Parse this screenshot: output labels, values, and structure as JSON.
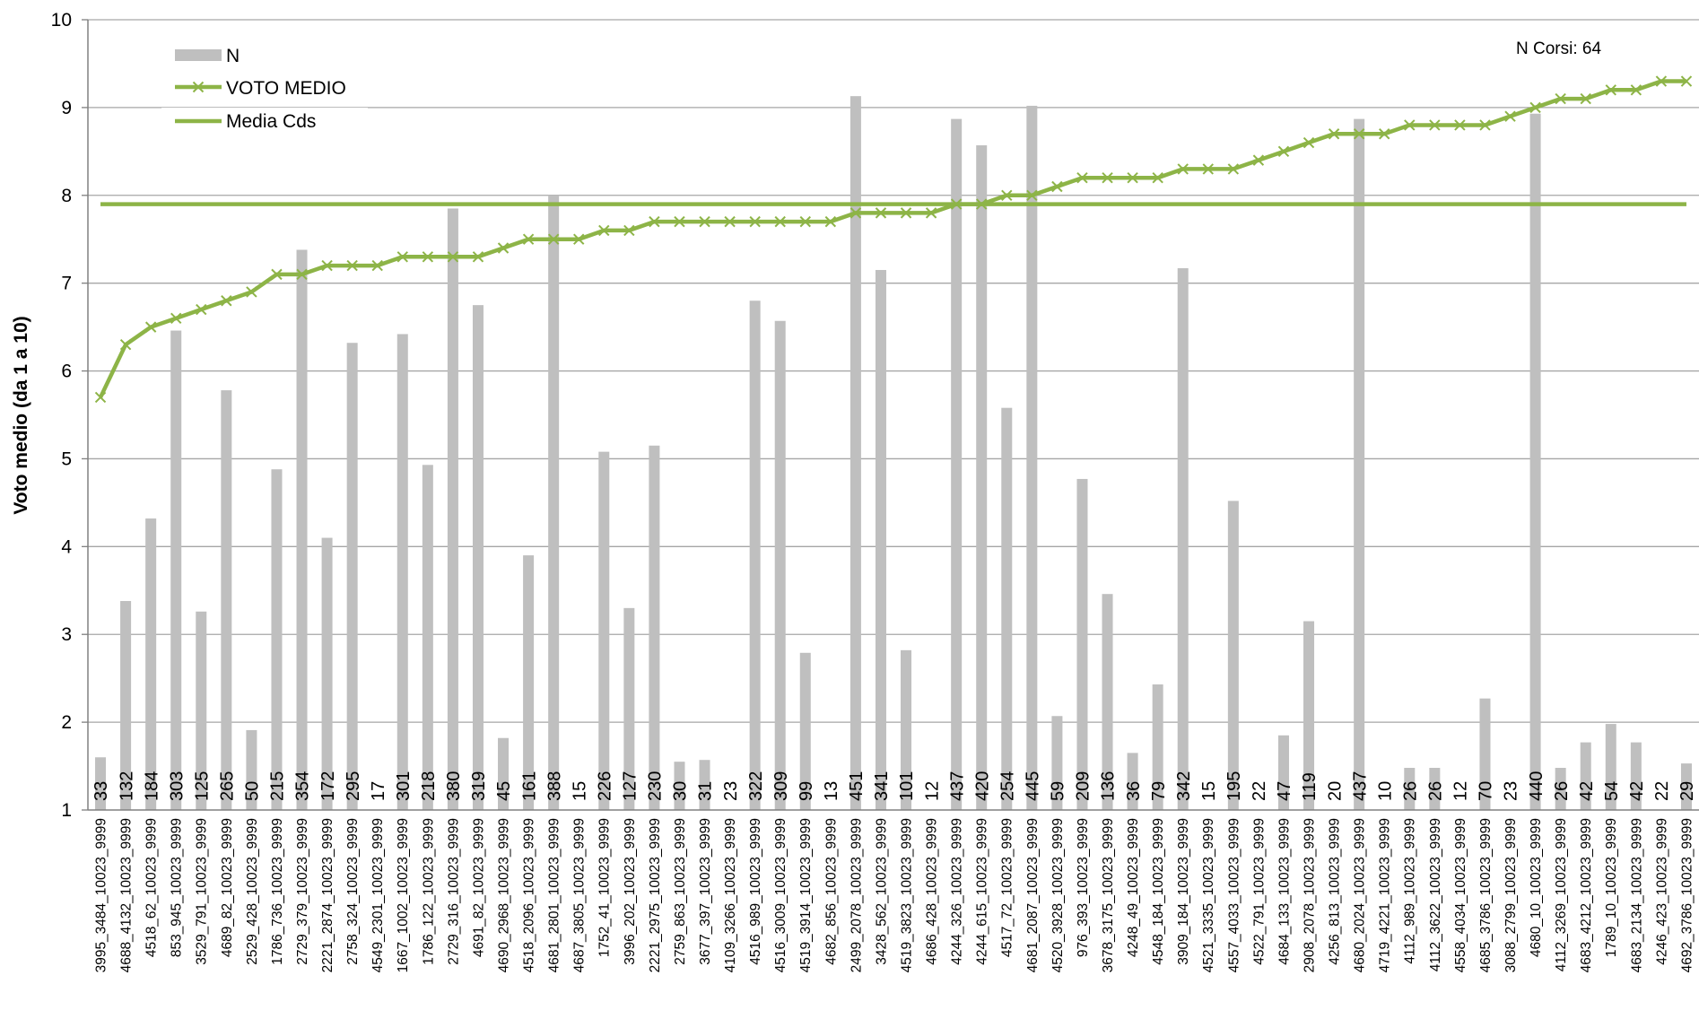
{
  "chart_data": {
    "type": "bar",
    "ylabel": "Voto medio (da 1 a 10)",
    "ylim": [
      1,
      10
    ],
    "yticks": [
      1,
      2,
      3,
      4,
      5,
      6,
      7,
      8,
      9,
      10
    ],
    "grid": true,
    "legend_position": "top-left",
    "annotation": {
      "label": "N Corsi:",
      "value": "64"
    },
    "colors": {
      "bars": "#bfbfbf",
      "line": "#8db447",
      "grid": "#a6a6a6"
    },
    "categories": [
      "3995_3484_10023_9999",
      "4688_4132_10023_9999",
      "4518_62_10023_9999",
      "853_945_10023_9999",
      "3529_791_10023_9999",
      "4689_82_10023_9999",
      "2529_428_10023_9999",
      "1786_736_10023_9999",
      "2729_379_10023_9999",
      "2221_2874_10023_9999",
      "2758_324_10023_9999",
      "4549_2301_10023_9999",
      "1667_1002_10023_9999",
      "1786_122_10023_9999",
      "2729_316_10023_9999",
      "4691_82_10023_9999",
      "4690_2968_10023_9999",
      "4518_2096_10023_9999",
      "4681_2801_10023_9999",
      "4687_3805_10023_9999",
      "1752_41_10023_9999",
      "3996_202_10023_9999",
      "2221_2975_10023_9999",
      "2759_863_10023_9999",
      "3677_397_10023_9999",
      "4109_3266_10023_9999",
      "4516_989_10023_9999",
      "4516_3009_10023_9999",
      "4519_3914_10023_9999",
      "4682_856_10023_9999",
      "2499_2078_10023_9999",
      "3428_562_10023_9999",
      "4519_3823_10023_9999",
      "4686_428_10023_9999",
      "4244_326_10023_9999",
      "4244_615_10023_9999",
      "4517_72_10023_9999",
      "4681_2087_10023_9999",
      "4520_3928_10023_9999",
      "976_393_10023_9999",
      "3678_3175_10023_9999",
      "4248_49_10023_9999",
      "4548_184_10023_9999",
      "3909_184_10023_9999",
      "4521_3335_10023_9999",
      "4557_4033_10023_9999",
      "4522_791_10023_9999",
      "4684_133_10023_9999",
      "2908_2078_10023_9999",
      "4256_813_10023_9999",
      "4680_2024_10023_9999",
      "4719_4221_10023_9999",
      "4112_989_10023_9999",
      "4112_3622_10023_9999",
      "4558_4034_10023_9999",
      "4685_3786_10023_9999",
      "3088_2799_10023_9999",
      "4680_10_10023_9999",
      "4112_3269_10023_9999",
      "4683_4212_10023_9999",
      "1789_10_10023_9999",
      "4683_2134_10023_9999",
      "4246_423_10023_9999",
      "4692_3786_10023_9999"
    ],
    "series": [
      {
        "name": "N",
        "type": "bar",
        "values": [
          33,
          132,
          184,
          303,
          125,
          265,
          50,
          215,
          354,
          172,
          295,
          17,
          301,
          218,
          380,
          319,
          45,
          161,
          388,
          15,
          226,
          127,
          230,
          30,
          31,
          23,
          322,
          309,
          99,
          13,
          451,
          341,
          101,
          12,
          437,
          420,
          254,
          445,
          59,
          209,
          136,
          36,
          79,
          342,
          15,
          195,
          22,
          47,
          119,
          20,
          437,
          10,
          26,
          26,
          12,
          70,
          23,
          440,
          26,
          42,
          54,
          42,
          22,
          29
        ]
      },
      {
        "name": "VOTO MEDIO",
        "type": "line",
        "marker": "x",
        "values": [
          5.7,
          6.3,
          6.5,
          6.6,
          6.7,
          6.8,
          6.9,
          7.1,
          7.1,
          7.2,
          7.2,
          7.2,
          7.3,
          7.3,
          7.3,
          7.3,
          7.4,
          7.5,
          7.5,
          7.5,
          7.6,
          7.6,
          7.7,
          7.7,
          7.7,
          7.7,
          7.7,
          7.7,
          7.7,
          7.7,
          7.8,
          7.8,
          7.8,
          7.8,
          7.9,
          7.9,
          8.0,
          8.0,
          8.1,
          8.2,
          8.2,
          8.2,
          8.2,
          8.3,
          8.3,
          8.3,
          8.4,
          8.5,
          8.6,
          8.7,
          8.7,
          8.7,
          8.8,
          8.8,
          8.8,
          8.8,
          8.9,
          9.0,
          9.1,
          9.1,
          9.2,
          9.2,
          9.3,
          9.3
        ]
      },
      {
        "name": "Media Cds",
        "type": "line",
        "value": 7.9
      }
    ],
    "bar_height_score": [
      1.6,
      3.38,
      4.32,
      6.46,
      3.26,
      5.78,
      1.91,
      4.88,
      7.38,
      4.1,
      6.32,
      1.0,
      6.42,
      4.93,
      7.85,
      6.75,
      1.82,
      3.9,
      8.0,
      1.0,
      5.08,
      3.3,
      5.15,
      1.55,
      1.57,
      1.0,
      6.8,
      6.57,
      2.79,
      1.0,
      9.13,
      7.15,
      2.82,
      1.0,
      8.87,
      8.57,
      5.58,
      9.02,
      2.07,
      4.77,
      3.46,
      1.65,
      2.43,
      7.17,
      1.0,
      4.52,
      1.0,
      1.85,
      3.15,
      1.0,
      8.87,
      1.0,
      1.48,
      1.48,
      1.0,
      2.27,
      1.0,
      8.93,
      1.48,
      1.77,
      1.98,
      1.77,
      1.0,
      1.53
    ]
  }
}
